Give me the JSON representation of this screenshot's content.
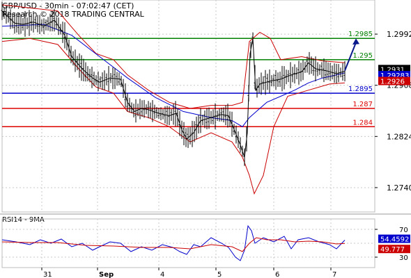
{
  "header": {
    "title": "GBP/USD - 30min - 07:02:47 (CET)",
    "copyright": "Research © 2018 TRADING CENTRAL"
  },
  "rsi_label": "RSI14 - 9MA",
  "colors": {
    "price": "#000000",
    "bollinger": "#cc0000",
    "ma": "#0000cc",
    "resistance": "#008000",
    "pivot": "#0000cc",
    "support": "#dd0000",
    "arrow": "#0a1a8c",
    "rsi": "#0000cc",
    "rsi_ma": "#cc0000",
    "grid": "#c8c8c8"
  },
  "chart_data": [
    {
      "type": "candlestick",
      "title": "GBP/USD - 30min - 07:02:47 (CET)",
      "ylim": [
        1.27,
        1.3048
      ],
      "y_ticks": [
        "1.2992",
        "1.2908",
        "1.2824",
        "1.2740"
      ],
      "x_ticks": [
        "31",
        "Sep",
        "4",
        "5",
        "6",
        "7"
      ],
      "levels": [
        {
          "value": 1.2985,
          "label": "1.2985",
          "kind": "resistance"
        },
        {
          "value": 1.295,
          "label": "1.295",
          "kind": "resistance"
        },
        {
          "value": 1.2895,
          "label": "1.2895",
          "kind": "pivot"
        },
        {
          "value": 1.287,
          "label": "1.287",
          "kind": "support"
        },
        {
          "value": 1.284,
          "label": "1.284",
          "kind": "support"
        }
      ],
      "badges": [
        {
          "value": 1.2931,
          "label": "1.2931",
          "kind": "last"
        },
        {
          "value": 1.29283,
          "label": "1.29283",
          "kind": "ma"
        },
        {
          "value": 1.2926,
          "label": "1.2926",
          "kind": "bollinger"
        }
      ],
      "price_path": [
        [
          0,
          1.303
        ],
        [
          18,
          1.301
        ],
        [
          30,
          1.3008
        ],
        [
          45,
          1.3012
        ],
        [
          60,
          1.3005
        ],
        [
          75,
          1.3015
        ],
        [
          90,
          1.299
        ],
        [
          100,
          1.2955
        ],
        [
          115,
          1.2935
        ],
        [
          130,
          1.292
        ],
        [
          140,
          1.2913
        ],
        [
          155,
          1.292
        ],
        [
          170,
          1.2918
        ],
        [
          180,
          1.288
        ],
        [
          190,
          1.2865
        ],
        [
          200,
          1.287
        ],
        [
          210,
          1.2868
        ],
        [
          225,
          1.2862
        ],
        [
          240,
          1.2858
        ],
        [
          250,
          1.2862
        ],
        [
          258,
          1.2835
        ],
        [
          265,
          1.282
        ],
        [
          275,
          1.283
        ],
        [
          285,
          1.285
        ],
        [
          300,
          1.2855
        ],
        [
          315,
          1.286
        ],
        [
          325,
          1.2858
        ],
        [
          335,
          1.283
        ],
        [
          342,
          1.281
        ],
        [
          348,
          1.279
        ],
        [
          352,
          1.283
        ],
        [
          356,
          1.296
        ],
        [
          360,
          1.2985
        ],
        [
          364,
          1.29
        ],
        [
          370,
          1.291
        ],
        [
          385,
          1.2915
        ],
        [
          400,
          1.2918
        ],
        [
          415,
          1.2925
        ],
        [
          430,
          1.293
        ],
        [
          440,
          1.2945
        ],
        [
          450,
          1.2935
        ],
        [
          465,
          1.2932
        ],
        [
          480,
          1.2927
        ],
        [
          492,
          1.2931
        ]
      ],
      "ma_path": [
        [
          0,
          1.3005
        ],
        [
          60,
          1.3008
        ],
        [
          100,
          1.299
        ],
        [
          140,
          1.2955
        ],
        [
          180,
          1.292
        ],
        [
          220,
          1.2888
        ],
        [
          260,
          1.2865
        ],
        [
          300,
          1.2855
        ],
        [
          330,
          1.285
        ],
        [
          345,
          1.284
        ],
        [
          355,
          1.2855
        ],
        [
          365,
          1.2865
        ],
        [
          380,
          1.288
        ],
        [
          400,
          1.289
        ],
        [
          420,
          1.29
        ],
        [
          440,
          1.2912
        ],
        [
          460,
          1.292
        ],
        [
          480,
          1.2925
        ],
        [
          492,
          1.29283
        ]
      ],
      "bollinger_upper": [
        [
          0,
          1.304
        ],
        [
          40,
          1.3035
        ],
        [
          80,
          1.303
        ],
        [
          110,
          1.299
        ],
        [
          135,
          1.296
        ],
        [
          160,
          1.295
        ],
        [
          180,
          1.2925
        ],
        [
          210,
          1.29
        ],
        [
          240,
          1.288
        ],
        [
          270,
          1.287
        ],
        [
          300,
          1.2875
        ],
        [
          330,
          1.2875
        ],
        [
          345,
          1.288
        ],
        [
          355,
          1.298
        ],
        [
          370,
          1.2995
        ],
        [
          385,
          1.2985
        ],
        [
          400,
          1.295
        ],
        [
          430,
          1.2955
        ],
        [
          460,
          1.2948
        ],
        [
          492,
          1.2945
        ]
      ],
      "bollinger_lower": [
        [
          0,
          1.298
        ],
        [
          40,
          1.2985
        ],
        [
          80,
          1.2975
        ],
        [
          110,
          1.2935
        ],
        [
          135,
          1.2905
        ],
        [
          160,
          1.2895
        ],
        [
          180,
          1.2865
        ],
        [
          210,
          1.2855
        ],
        [
          240,
          1.284
        ],
        [
          270,
          1.2815
        ],
        [
          300,
          1.283
        ],
        [
          330,
          1.2815
        ],
        [
          345,
          1.279
        ],
        [
          355,
          1.276
        ],
        [
          362,
          1.273
        ],
        [
          375,
          1.276
        ],
        [
          390,
          1.284
        ],
        [
          410,
          1.289
        ],
        [
          440,
          1.29
        ],
        [
          470,
          1.291
        ],
        [
          492,
          1.2912
        ]
      ],
      "arrow": {
        "from": [
          492,
          1.2932
        ],
        "to": [
          508,
          1.2985
        ]
      }
    },
    {
      "type": "line",
      "title": "RSI14 - 9MA",
      "ylim": [
        15,
        85
      ],
      "y_ticks": [
        "70",
        "30"
      ],
      "grid_levels": [
        70,
        50,
        30
      ],
      "series": [
        {
          "name": "RSI14",
          "value_label": "54.4592",
          "values": [
            [
              0,
              55
            ],
            [
              20,
              52
            ],
            [
              40,
              48
            ],
            [
              55,
              55
            ],
            [
              70,
              50
            ],
            [
              85,
              56
            ],
            [
              100,
              45
            ],
            [
              115,
              50
            ],
            [
              130,
              40
            ],
            [
              140,
              45
            ],
            [
              155,
              52
            ],
            [
              170,
              50
            ],
            [
              185,
              38
            ],
            [
              200,
              45
            ],
            [
              215,
              40
            ],
            [
              230,
              48
            ],
            [
              245,
              44
            ],
            [
              255,
              38
            ],
            [
              265,
              34
            ],
            [
              275,
              48
            ],
            [
              285,
              45
            ],
            [
              300,
              58
            ],
            [
              315,
              50
            ],
            [
              325,
              44
            ],
            [
              335,
              30
            ],
            [
              342,
              25
            ],
            [
              348,
              40
            ],
            [
              353,
              75
            ],
            [
              358,
              68
            ],
            [
              363,
              50
            ],
            [
              375,
              58
            ],
            [
              390,
              52
            ],
            [
              405,
              60
            ],
            [
              415,
              42
            ],
            [
              425,
              55
            ],
            [
              440,
              58
            ],
            [
              455,
              52
            ],
            [
              470,
              48
            ],
            [
              480,
              42
            ],
            [
              492,
              54.4592
            ]
          ]
        },
        {
          "name": "9MA",
          "value_label": "49.777",
          "values": [
            [
              0,
              52
            ],
            [
              40,
              51
            ],
            [
              80,
              51
            ],
            [
              120,
              47
            ],
            [
              160,
              46
            ],
            [
              200,
              44
            ],
            [
              240,
              44
            ],
            [
              270,
              42
            ],
            [
              300,
              48
            ],
            [
              330,
              45
            ],
            [
              345,
              38
            ],
            [
              355,
              50
            ],
            [
              365,
              58
            ],
            [
              380,
              55
            ],
            [
              400,
              55
            ],
            [
              420,
              52
            ],
            [
              440,
              53
            ],
            [
              460,
              52
            ],
            [
              480,
              49
            ],
            [
              492,
              49.777
            ]
          ]
        }
      ]
    }
  ]
}
